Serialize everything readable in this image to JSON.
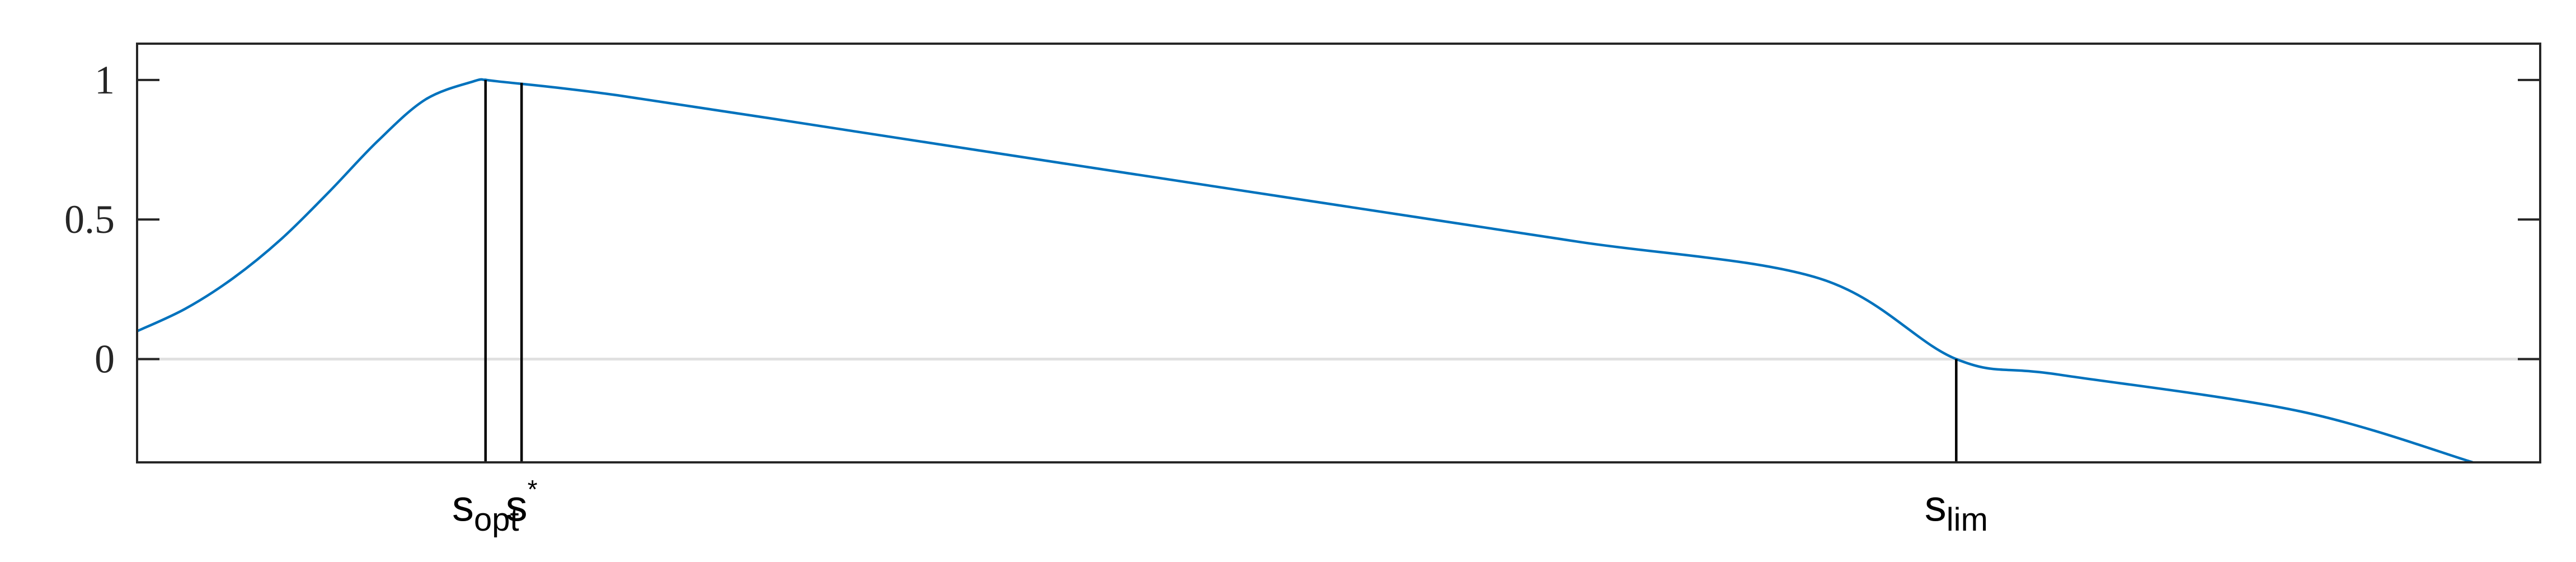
{
  "chart_data": {
    "type": "line",
    "title": "",
    "xlabel": "",
    "ylabel": "",
    "xlim": [
      0,
      1
    ],
    "ylim": [
      -0.37,
      1.13
    ],
    "grid": false,
    "y_ticks": [
      {
        "value": 0,
        "label": "0"
      },
      {
        "value": 0.5,
        "label": "0.5"
      },
      {
        "value": 1,
        "label": "1"
      }
    ],
    "zero_line": {
      "y": 0,
      "color": "#e0e0e0"
    },
    "series": [
      {
        "color": "#0072bd",
        "x": [
          0,
          0.02,
          0.04,
          0.06,
          0.08,
          0.1,
          0.12,
          0.14,
          0.145,
          0.15,
          0.2,
          0.3,
          0.4,
          0.5,
          0.6,
          0.7,
          0.757,
          0.8,
          0.9,
          0.972
        ],
        "y": [
          0.1,
          0.18,
          0.29,
          0.43,
          0.6,
          0.78,
          0.93,
          0.995,
          1.0,
          0.995,
          0.945,
          0.814,
          0.682,
          0.551,
          0.42,
          0.289,
          0.0,
          -0.056,
          -0.187,
          -0.37
        ]
      }
    ],
    "markers": [
      {
        "x": 0.145,
        "y_top": 1.0,
        "base": "s",
        "sub": "opt",
        "sup": ""
      },
      {
        "x": 0.16,
        "y_top": 0.99,
        "base": "s",
        "sub": "",
        "sup": "*"
      },
      {
        "x": 0.757,
        "y_top": 0.0,
        "base": "s",
        "sub": "lim",
        "sup": ""
      }
    ],
    "colors": {
      "axis": "#262626",
      "marker_line": "#000000",
      "curve": "#0072bd"
    }
  }
}
